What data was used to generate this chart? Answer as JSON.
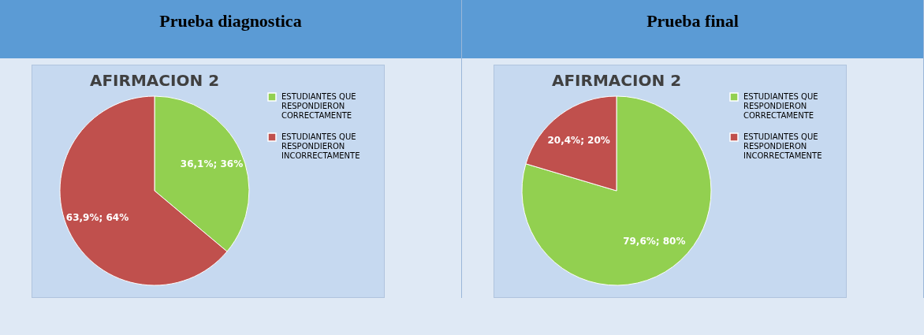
{
  "chart_data": [
    {
      "type": "pie",
      "title": "Prueba diagnostica",
      "subtitle": "AFIRMACION 2",
      "categories": [
        "ESTUDIANTES QUE RESPONDIERON CORRECTAMENTE",
        "ESTUDIANTES QUE RESPONDIERON INCORRECTAMENTE"
      ],
      "values": [
        36.1,
        63.9
      ],
      "colors": [
        "#92d050",
        "#c0504d"
      ],
      "value_labels": [
        "36,1%; 36%",
        "63,9%; 64%"
      ],
      "legend": "right"
    },
    {
      "type": "pie",
      "title": "Prueba final",
      "subtitle": "AFIRMACION 2",
      "categories": [
        "ESTUDIANTES QUE RESPONDIERON CORRECTAMENTE",
        "ESTUDIANTES QUE RESPONDIERON INCORRECTAMENTE"
      ],
      "values": [
        79.6,
        20.4
      ],
      "colors": [
        "#92d050",
        "#c0504d"
      ],
      "value_labels": [
        "79,6%; 80%",
        "20,4%; 20%"
      ],
      "legend": "right"
    }
  ]
}
